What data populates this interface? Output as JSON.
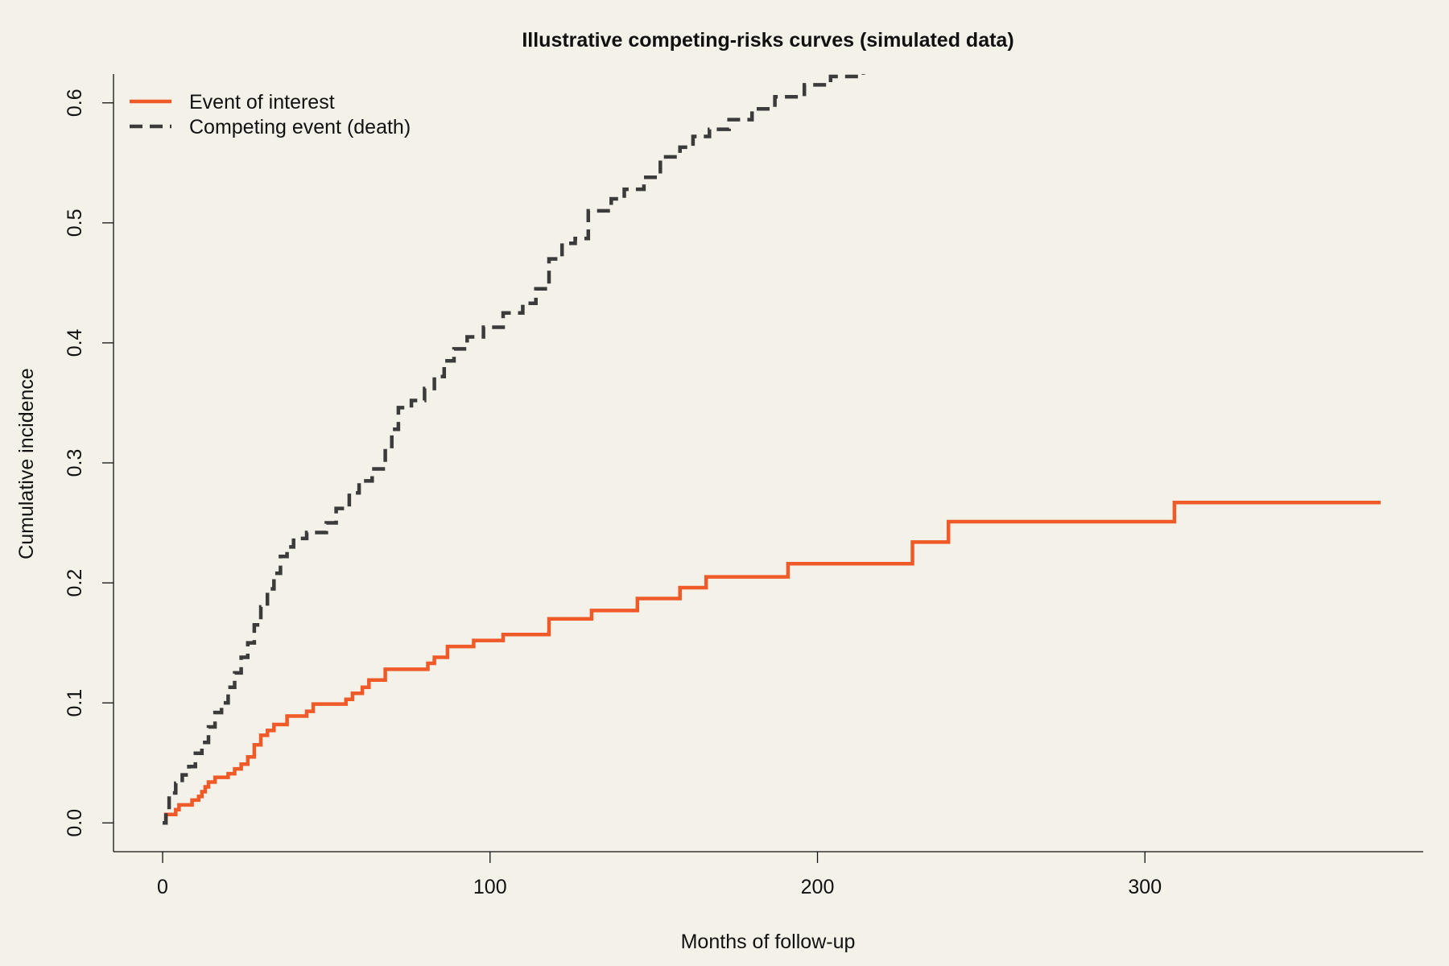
{
  "chart_data": {
    "type": "line",
    "step": true,
    "title": "Illustrative competing-risks curves (simulated data)",
    "xlabel": "Months of follow-up",
    "ylabel": "Cumulative incidence",
    "xlim": [
      -15,
      385
    ],
    "ylim": [
      -0.024,
      0.624
    ],
    "xticks": [
      0,
      100,
      200,
      300
    ],
    "yticks": [
      0.0,
      0.1,
      0.2,
      0.3,
      0.4,
      0.5,
      0.6
    ],
    "ytick_labels": [
      "0.0",
      "0.1",
      "0.2",
      "0.3",
      "0.4",
      "0.5",
      "0.6"
    ],
    "grid": false,
    "legend_position": "top-left",
    "series": [
      {
        "name": "Event of interest",
        "color": "#f05a28",
        "dash": "solid",
        "x": [
          0,
          1,
          4,
          5,
          9,
          11,
          12,
          13,
          14,
          16,
          20,
          22,
          24,
          26,
          28,
          30,
          32,
          34,
          38,
          44,
          46,
          56,
          58,
          61,
          63,
          68,
          81,
          83,
          87,
          95,
          104,
          118,
          131,
          145,
          158,
          166,
          191,
          229,
          240,
          309,
          372
        ],
        "y": [
          0.0,
          0.007,
          0.011,
          0.015,
          0.019,
          0.022,
          0.026,
          0.03,
          0.034,
          0.038,
          0.041,
          0.045,
          0.049,
          0.055,
          0.065,
          0.073,
          0.077,
          0.082,
          0.089,
          0.093,
          0.099,
          0.103,
          0.108,
          0.113,
          0.119,
          0.128,
          0.133,
          0.138,
          0.147,
          0.152,
          0.157,
          0.17,
          0.177,
          0.187,
          0.196,
          0.205,
          0.216,
          0.234,
          0.251,
          0.267,
          0.267
        ]
      },
      {
        "name": "Competing event (death)",
        "color": "#3b3b3b",
        "dash": "dashed",
        "x": [
          0,
          1,
          2,
          4,
          6,
          8,
          10,
          12,
          14,
          16,
          18,
          20,
          22,
          24,
          26,
          28,
          30,
          32,
          34,
          36,
          38,
          40,
          44,
          50,
          53,
          57,
          60,
          64,
          68,
          70,
          72,
          76,
          80,
          83,
          86,
          89,
          93,
          98,
          104,
          110,
          114,
          118,
          122,
          126,
          130,
          137,
          141,
          147,
          152,
          158,
          162,
          167,
          173,
          180,
          187,
          196,
          204,
          214,
          220
        ],
        "y": [
          0.0,
          0.01,
          0.025,
          0.033,
          0.04,
          0.047,
          0.058,
          0.067,
          0.08,
          0.092,
          0.1,
          0.113,
          0.125,
          0.138,
          0.15,
          0.165,
          0.18,
          0.195,
          0.208,
          0.222,
          0.23,
          0.237,
          0.242,
          0.25,
          0.262,
          0.275,
          0.285,
          0.295,
          0.312,
          0.328,
          0.346,
          0.352,
          0.362,
          0.372,
          0.385,
          0.395,
          0.405,
          0.413,
          0.425,
          0.433,
          0.445,
          0.47,
          0.483,
          0.487,
          0.51,
          0.52,
          0.528,
          0.538,
          0.555,
          0.563,
          0.572,
          0.578,
          0.586,
          0.595,
          0.605,
          0.615,
          0.622,
          0.63,
          0.63
        ]
      }
    ]
  }
}
